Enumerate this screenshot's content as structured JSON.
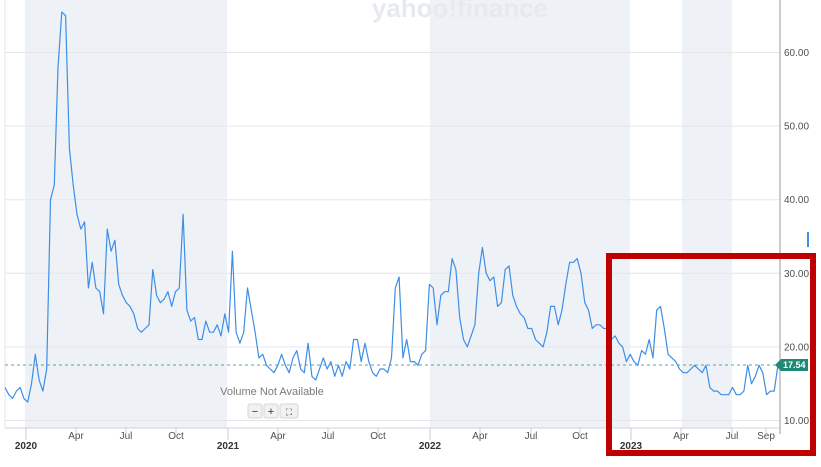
{
  "watermark": "yahoo!finance",
  "volume_notice": "Volume Not Available",
  "zoom_controls": {
    "zoom_out": "−",
    "zoom_in": "+",
    "fullscreen": "⛶"
  },
  "colors": {
    "line": "#3d8ee6",
    "shade": "#eef2f7",
    "grid": "#e4e6ea",
    "axis_text": "#505050",
    "reference_line": "#5aa3a3",
    "price_tag": "#1d8a76",
    "highlight_box": "#c00000"
  },
  "chart_data": {
    "type": "line",
    "title": "",
    "xlabel": "",
    "ylabel": "",
    "ylim": [
      9,
      66
    ],
    "grid": true,
    "y_ticks": [
      10,
      20,
      30,
      40,
      50,
      60
    ],
    "y_tick_labels": [
      "10.00",
      "20.00",
      "30.00",
      "40.00",
      "50.00",
      "60.00"
    ],
    "x_ticks": [
      {
        "label": "2020",
        "year": true
      },
      {
        "label": "Apr",
        "year": false
      },
      {
        "label": "Jul",
        "year": false
      },
      {
        "label": "Oct",
        "year": false
      },
      {
        "label": "2021",
        "year": true
      },
      {
        "label": "Apr",
        "year": false
      },
      {
        "label": "Jul",
        "year": false
      },
      {
        "label": "Oct",
        "year": false
      },
      {
        "label": "2022",
        "year": true
      },
      {
        "label": "Apr",
        "year": false
      },
      {
        "label": "Jul",
        "year": false
      },
      {
        "label": "Oct",
        "year": false
      },
      {
        "label": "2023",
        "year": true
      },
      {
        "label": "Apr",
        "year": false
      },
      {
        "label": "Jul",
        "year": false
      },
      {
        "label": "Sep",
        "year": false
      }
    ],
    "current_value": 17.54,
    "current_value_label": "17.54",
    "series": [
      {
        "values": [
          14.5,
          13.5,
          13,
          14,
          14.5,
          13,
          12.5,
          15,
          19,
          15.5,
          14,
          17,
          40,
          42,
          58,
          65.5,
          65,
          47,
          42,
          38,
          36,
          37,
          28,
          31.5,
          28,
          27.5,
          24.5,
          36,
          33,
          34.5,
          28.5,
          27,
          26,
          25.5,
          24.5,
          22.5,
          22,
          22.5,
          23,
          30.5,
          27,
          26,
          26.5,
          27.5,
          25.5,
          27.5,
          28,
          38,
          25,
          23.5,
          24,
          21,
          21,
          23.5,
          22,
          22,
          23,
          21.5,
          24.5,
          22,
          33,
          22,
          20.5,
          22,
          28,
          25,
          22,
          18.5,
          19,
          17.5,
          17,
          16.5,
          17.5,
          19,
          17.5,
          16.5,
          18.5,
          19.5,
          17,
          16.5,
          20.5,
          16,
          15.5,
          17,
          18.5,
          17,
          18,
          16,
          17.5,
          16,
          18,
          17,
          21,
          21,
          18,
          20.5,
          18,
          16.5,
          16,
          17,
          17,
          16.5,
          18.5,
          28,
          29.5,
          18.5,
          21,
          18,
          18,
          17.5,
          19,
          19.5,
          28.5,
          28,
          23,
          27,
          27.5,
          27.5,
          32,
          30.5,
          24,
          21,
          20,
          21.5,
          23,
          30,
          33.5,
          30,
          29,
          29.5,
          25.5,
          26,
          30.5,
          31,
          27,
          25.5,
          24.5,
          24,
          22.5,
          22.5,
          21,
          20.5,
          20,
          22,
          25.5,
          25.5,
          23,
          25,
          28.5,
          31.5,
          31.5,
          32,
          30,
          26,
          25,
          22.5,
          23,
          23,
          22.5,
          22.5,
          21,
          21.5,
          20.5,
          20,
          18,
          19,
          18,
          17.5,
          19.5,
          19,
          21,
          18.5,
          25,
          25.5,
          22.5,
          19,
          18.5,
          18,
          17,
          16.5,
          16.5,
          17,
          17.5,
          17,
          16.5,
          17.5,
          14.5,
          14,
          14,
          13.5,
          13.5,
          13.5,
          14.5,
          13.5,
          13.5,
          14,
          17.5,
          15,
          16,
          17.5,
          16.5,
          13.5,
          14,
          14,
          17.54
        ]
      }
    ]
  }
}
